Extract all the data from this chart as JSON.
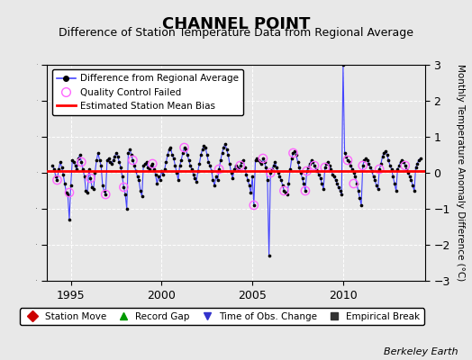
{
  "title": "CHANNEL POINT",
  "subtitle": "Difference of Station Temperature Data from Regional Average",
  "ylabel": "Monthly Temperature Anomaly Difference (°C)",
  "xlabel_bottom": "Berkeley Earth",
  "xlim": [
    1993.7,
    2014.5
  ],
  "ylim": [
    -3,
    3
  ],
  "yticks": [
    -3,
    -2,
    -1,
    0,
    1,
    2,
    3
  ],
  "xticks": [
    1995,
    2000,
    2005,
    2010
  ],
  "bias_value": 0.05,
  "background_color": "#e8e8e8",
  "plot_bg_color": "#e8e8e8",
  "line_color": "#4444ff",
  "dot_color": "#000000",
  "bias_color": "#ff0000",
  "qc_color": "#ff66ff",
  "title_fontsize": 13,
  "subtitle_fontsize": 9,
  "data_x": [
    1994.0,
    1994.083,
    1994.167,
    1994.25,
    1994.333,
    1994.417,
    1994.5,
    1994.583,
    1994.667,
    1994.75,
    1994.833,
    1994.917,
    1995.0,
    1995.083,
    1995.167,
    1995.25,
    1995.333,
    1995.417,
    1995.5,
    1995.583,
    1995.667,
    1995.75,
    1995.833,
    1995.917,
    1996.0,
    1996.083,
    1996.167,
    1996.25,
    1996.333,
    1996.417,
    1996.5,
    1996.583,
    1996.667,
    1996.75,
    1996.833,
    1996.917,
    1997.0,
    1997.083,
    1997.167,
    1997.25,
    1997.333,
    1997.417,
    1997.5,
    1997.583,
    1997.667,
    1997.75,
    1997.833,
    1997.917,
    1998.0,
    1998.083,
    1998.167,
    1998.25,
    1998.333,
    1998.417,
    1998.5,
    1998.583,
    1998.667,
    1998.75,
    1998.833,
    1998.917,
    1999.0,
    1999.083,
    1999.167,
    1999.25,
    1999.333,
    1999.417,
    1999.5,
    1999.583,
    1999.667,
    1999.75,
    1999.833,
    1999.917,
    2000.0,
    2000.083,
    2000.167,
    2000.25,
    2000.333,
    2000.417,
    2000.5,
    2000.583,
    2000.667,
    2000.75,
    2000.833,
    2000.917,
    2001.0,
    2001.083,
    2001.167,
    2001.25,
    2001.333,
    2001.417,
    2001.5,
    2001.583,
    2001.667,
    2001.75,
    2001.833,
    2001.917,
    2002.0,
    2002.083,
    2002.167,
    2002.25,
    2002.333,
    2002.417,
    2002.5,
    2002.583,
    2002.667,
    2002.75,
    2002.833,
    2002.917,
    2003.0,
    2003.083,
    2003.167,
    2003.25,
    2003.333,
    2003.417,
    2003.5,
    2003.583,
    2003.667,
    2003.75,
    2003.833,
    2003.917,
    2004.0,
    2004.083,
    2004.167,
    2004.25,
    2004.333,
    2004.417,
    2004.5,
    2004.583,
    2004.667,
    2004.75,
    2004.833,
    2004.917,
    2005.0,
    2005.083,
    2005.167,
    2005.25,
    2005.333,
    2005.417,
    2005.5,
    2005.583,
    2005.667,
    2005.75,
    2005.833,
    2005.917,
    2006.0,
    2006.083,
    2006.167,
    2006.25,
    2006.333,
    2006.417,
    2006.5,
    2006.583,
    2006.667,
    2006.75,
    2006.833,
    2006.917,
    2007.0,
    2007.083,
    2007.167,
    2007.25,
    2007.333,
    2007.417,
    2007.5,
    2007.583,
    2007.667,
    2007.75,
    2007.833,
    2007.917,
    2008.0,
    2008.083,
    2008.167,
    2008.25,
    2008.333,
    2008.417,
    2008.5,
    2008.583,
    2008.667,
    2008.75,
    2008.833,
    2008.917,
    2009.0,
    2009.083,
    2009.167,
    2009.25,
    2009.333,
    2009.417,
    2009.5,
    2009.583,
    2009.667,
    2009.75,
    2009.833,
    2009.917,
    2010.0,
    2010.083,
    2010.167,
    2010.25,
    2010.333,
    2010.417,
    2010.5,
    2010.583,
    2010.667,
    2010.75,
    2010.833,
    2010.917,
    2011.0,
    2011.083,
    2011.167,
    2011.25,
    2011.333,
    2011.417,
    2011.5,
    2011.583,
    2011.667,
    2011.75,
    2011.833,
    2011.917,
    2012.0,
    2012.083,
    2012.167,
    2012.25,
    2012.333,
    2012.417,
    2012.5,
    2012.583,
    2012.667,
    2012.75,
    2012.833,
    2012.917,
    2013.0,
    2013.083,
    2013.167,
    2013.25,
    2013.333,
    2013.417,
    2013.5,
    2013.583,
    2013.667,
    2013.75,
    2013.833,
    2013.917,
    2014.0,
    2014.083,
    2014.167,
    2014.25
  ],
  "data_y": [
    0.2,
    0.1,
    -0.1,
    -0.2,
    0.1,
    0.3,
    0.15,
    -0.05,
    -0.3,
    -0.55,
    -0.6,
    -1.3,
    -0.35,
    0.35,
    0.3,
    0.2,
    0.1,
    0.4,
    0.5,
    0.3,
    0.1,
    -0.1,
    -0.5,
    -0.55,
    0.1,
    -0.15,
    -0.4,
    -0.45,
    0.0,
    0.35,
    0.55,
    0.35,
    0.2,
    -0.35,
    -0.5,
    -0.6,
    0.35,
    0.4,
    0.3,
    0.25,
    0.35,
    0.45,
    0.55,
    0.45,
    0.3,
    0.15,
    -0.1,
    -0.4,
    -0.6,
    -1.0,
    0.55,
    0.65,
    0.5,
    0.35,
    0.2,
    0.05,
    -0.1,
    -0.2,
    -0.5,
    -0.65,
    0.2,
    0.25,
    0.3,
    0.15,
    0.1,
    0.2,
    0.25,
    0.1,
    -0.05,
    -0.3,
    -0.1,
    -0.2,
    0.05,
    -0.05,
    0.1,
    0.3,
    0.5,
    0.65,
    0.7,
    0.5,
    0.4,
    0.2,
    0.0,
    -0.2,
    0.2,
    0.35,
    0.55,
    0.7,
    0.65,
    0.5,
    0.35,
    0.2,
    0.1,
    -0.05,
    -0.15,
    -0.25,
    0.05,
    0.25,
    0.5,
    0.65,
    0.75,
    0.7,
    0.5,
    0.3,
    0.2,
    0.05,
    -0.2,
    -0.35,
    -0.1,
    -0.2,
    0.1,
    0.35,
    0.55,
    0.7,
    0.8,
    0.65,
    0.5,
    0.25,
    0.0,
    -0.15,
    0.1,
    0.2,
    0.15,
    0.1,
    0.2,
    0.3,
    0.35,
    0.15,
    -0.05,
    -0.2,
    -0.35,
    -0.55,
    -0.1,
    -0.9,
    0.35,
    0.4,
    0.35,
    0.3,
    0.25,
    0.4,
    0.3,
    0.15,
    -0.2,
    -2.3,
    0.0,
    0.1,
    0.2,
    0.3,
    0.15,
    0.0,
    -0.1,
    -0.2,
    -0.35,
    -0.5,
    -0.55,
    -0.6,
    -0.3,
    0.1,
    0.4,
    0.55,
    0.6,
    0.5,
    0.3,
    0.15,
    0.0,
    -0.15,
    -0.3,
    -0.5,
    0.05,
    0.15,
    0.25,
    0.35,
    0.3,
    0.2,
    0.1,
    0.05,
    -0.05,
    -0.15,
    -0.3,
    -0.45,
    0.15,
    0.25,
    0.3,
    0.2,
    0.1,
    -0.05,
    -0.1,
    -0.2,
    -0.3,
    -0.4,
    -0.5,
    -0.6,
    3.0,
    0.55,
    0.45,
    0.35,
    0.3,
    0.2,
    0.1,
    0.0,
    -0.1,
    -0.3,
    -0.5,
    -0.7,
    -0.9,
    0.2,
    0.35,
    0.4,
    0.35,
    0.25,
    0.15,
    0.05,
    -0.1,
    -0.2,
    -0.35,
    -0.45,
    0.1,
    0.25,
    0.45,
    0.55,
    0.6,
    0.5,
    0.35,
    0.2,
    0.1,
    -0.1,
    -0.3,
    -0.5,
    0.1,
    0.2,
    0.3,
    0.35,
    0.3,
    0.2,
    0.1,
    0.0,
    -0.1,
    -0.2,
    -0.35,
    -0.5,
    0.15,
    0.25,
    0.35,
    0.4
  ],
  "qc_x": [
    1994.25,
    1994.917,
    1995.583,
    1996.083,
    1996.917,
    1997.917,
    1998.417,
    1999.5,
    2001.25,
    2003.167,
    2004.333,
    2005.083,
    2005.583,
    2006.0,
    2006.75,
    2007.25,
    2007.917,
    2008.0,
    2008.417,
    2009.0,
    2010.25,
    2010.583,
    2011.083,
    2012.0,
    2013.417
  ],
  "qc_y": [
    -0.2,
    -0.55,
    0.3,
    -0.15,
    -0.6,
    -0.4,
    0.35,
    0.25,
    0.7,
    0.1,
    0.2,
    -0.9,
    0.4,
    0.0,
    -0.5,
    0.55,
    -0.5,
    0.05,
    0.2,
    0.15,
    0.35,
    -0.3,
    0.2,
    0.1,
    0.2
  ]
}
